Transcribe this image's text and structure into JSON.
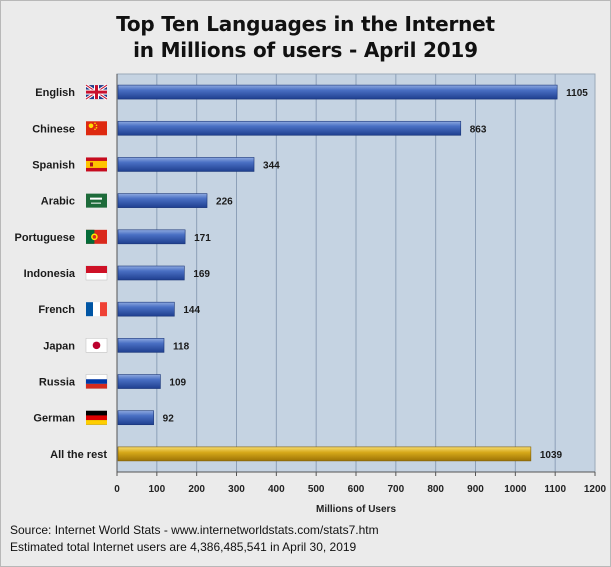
{
  "chart_data": {
    "type": "bar",
    "orientation": "horizontal",
    "title": "Top Ten Languages in the Internet",
    "subtitle": "in Millions of users - April 2019",
    "xlabel": "Millions of Users",
    "xlim": [
      0,
      1200
    ],
    "xticks": [
      0,
      100,
      200,
      300,
      400,
      500,
      600,
      700,
      800,
      900,
      1000,
      1100,
      1200
    ],
    "grid": true,
    "categories": [
      "English",
      "Chinese",
      "Spanish",
      "Arabic",
      "Portuguese",
      "Indonesia",
      "French",
      "Japan",
      "Russia",
      "German",
      "All the rest"
    ],
    "values": [
      1105,
      863,
      344,
      226,
      171,
      169,
      144,
      118,
      109,
      92,
      1039
    ],
    "flags": [
      "uk-flag-icon",
      "china-flag-icon",
      "spain-flag-icon",
      "saudi-arabia-flag-icon",
      "portugal-flag-icon",
      "indonesia-flag-icon",
      "france-flag-icon",
      "japan-flag-icon",
      "russia-flag-icon",
      "germany-flag-icon",
      null
    ],
    "colors": {
      "bar": "#3a5fb3",
      "bar_highlight": "#d4a417",
      "plot_bg": "#c5d3e2",
      "grid": "#8da0b8"
    }
  },
  "source": {
    "line1": "Source: Internet World Stats - www.internetworldstats.com/stats7.htm",
    "line2": "Estimated total Internet users are 4,386,485,541 in April 30, 2019"
  }
}
